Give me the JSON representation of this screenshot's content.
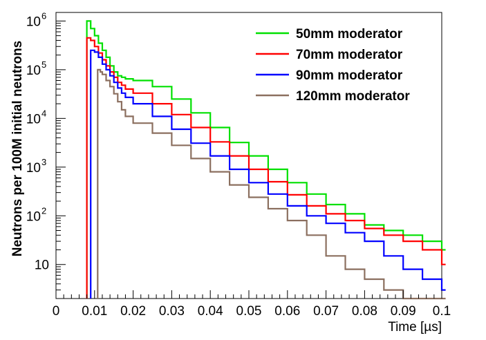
{
  "chart_data": {
    "type": "line",
    "xlabel": "Time [µs]",
    "ylabel": "Neutrons per 100M initial neutrons",
    "xlim": [
      0,
      0.1
    ],
    "ylim": [
      2,
      1500000
    ],
    "yscale": "log",
    "x_ticks": [
      "0",
      "0.01",
      "0.02",
      "0.03",
      "0.04",
      "0.05",
      "0.06",
      "0.07",
      "0.08",
      "0.09",
      "0.1"
    ],
    "y_ticks": [
      {
        "label": "10",
        "sup": "",
        "value": 10
      },
      {
        "label": "10",
        "sup": "2",
        "value": 100
      },
      {
        "label": "10",
        "sup": "3",
        "value": 1000
      },
      {
        "label": "10",
        "sup": "4",
        "value": 10000
      },
      {
        "label": "10",
        "sup": "5",
        "value": 100000
      },
      {
        "label": "10",
        "sup": "6",
        "value": 1000000
      }
    ],
    "legend_position": "top-right",
    "series": [
      {
        "name": "50mm moderator",
        "color": "#00e000",
        "x": [
          0.008,
          0.009,
          0.01,
          0.011,
          0.012,
          0.013,
          0.014,
          0.015,
          0.016,
          0.017,
          0.018,
          0.02,
          0.025,
          0.03,
          0.035,
          0.04,
          0.045,
          0.05,
          0.055,
          0.06,
          0.065,
          0.07,
          0.075,
          0.08,
          0.085,
          0.09,
          0.095,
          0.1
        ],
        "values": [
          1000000,
          700000,
          500000,
          350000,
          250000,
          180000,
          120000,
          90000,
          75000,
          70000,
          65000,
          60000,
          45000,
          25000,
          13000,
          6500,
          3200,
          1700,
          900,
          480,
          280,
          170,
          110,
          65,
          50,
          40,
          30,
          20
        ]
      },
      {
        "name": "70mm moderator",
        "color": "#ff0000",
        "x": [
          0.008,
          0.009,
          0.01,
          0.011,
          0.012,
          0.013,
          0.014,
          0.015,
          0.016,
          0.017,
          0.018,
          0.02,
          0.025,
          0.03,
          0.035,
          0.04,
          0.045,
          0.05,
          0.055,
          0.06,
          0.065,
          0.07,
          0.075,
          0.08,
          0.085,
          0.09,
          0.095,
          0.1
        ],
        "values": [
          450000,
          400000,
          300000,
          220000,
          160000,
          120000,
          90000,
          70000,
          55000,
          48000,
          40000,
          33000,
          20000,
          12000,
          6500,
          3300,
          1700,
          900,
          500,
          270,
          160,
          110,
          80,
          55,
          40,
          30,
          20,
          10
        ]
      },
      {
        "name": "90mm moderator",
        "color": "#0000ff",
        "x": [
          0.009,
          0.01,
          0.011,
          0.012,
          0.013,
          0.014,
          0.015,
          0.016,
          0.017,
          0.018,
          0.02,
          0.025,
          0.03,
          0.035,
          0.04,
          0.045,
          0.05,
          0.055,
          0.06,
          0.065,
          0.07,
          0.075,
          0.08,
          0.085,
          0.09,
          0.095,
          0.1
        ],
        "values": [
          250000,
          230000,
          180000,
          130000,
          100000,
          75000,
          55000,
          42000,
          33000,
          27000,
          20000,
          11000,
          6000,
          3100,
          1700,
          900,
          480,
          280,
          160,
          100,
          70,
          45,
          30,
          15,
          8,
          5,
          3
        ]
      },
      {
        "name": "120mm moderator",
        "color": "#8b6f5f",
        "x": [
          0.0108,
          0.0115,
          0.012,
          0.013,
          0.014,
          0.015,
          0.016,
          0.017,
          0.018,
          0.02,
          0.025,
          0.03,
          0.035,
          0.04,
          0.045,
          0.05,
          0.055,
          0.06,
          0.065,
          0.07,
          0.075,
          0.08,
          0.085,
          0.09,
          0.095,
          0.1
        ],
        "values": [
          100000,
          90000,
          80000,
          60000,
          45000,
          32000,
          22000,
          15000,
          11000,
          8000,
          5000,
          2800,
          1500,
          800,
          430,
          240,
          140,
          80,
          40,
          15,
          8,
          5,
          3,
          2,
          2,
          2
        ]
      }
    ]
  }
}
